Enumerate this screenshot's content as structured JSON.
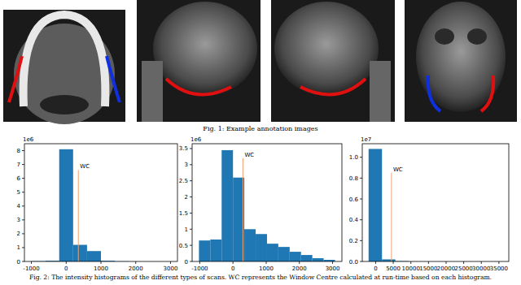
{
  "figure1": {
    "caption": "Fig. 1: Example annotation images"
  },
  "chart_data": [
    {
      "type": "histogram",
      "bins": [
        -1000,
        -600,
        -200,
        200,
        600,
        1000,
        1400,
        1800,
        2200,
        2600,
        3000
      ],
      "values": [
        0.02,
        0.05,
        8.1,
        1.2,
        0.75,
        0.05,
        0.01,
        0,
        0,
        0
      ],
      "color": "#1f77b4",
      "xlim": [
        -1200,
        3200
      ],
      "xticks": [
        -1000,
        0,
        1000,
        2000,
        3000
      ],
      "ylim": [
        0,
        8.5
      ],
      "yticks": [
        0,
        1,
        2,
        3,
        4,
        5,
        6,
        7,
        8
      ],
      "y_offset_label": "1e6",
      "wc": {
        "label": "WC",
        "value": 350,
        "top": 6.6
      }
    },
    {
      "type": "histogram",
      "bins": [
        -1024,
        -683,
        -341,
        0,
        341,
        683,
        1024,
        1365,
        1707,
        2048,
        2389,
        2731,
        3072
      ],
      "values": [
        0.65,
        0.68,
        3.45,
        2.6,
        1.0,
        0.85,
        0.55,
        0.45,
        0.3,
        0.2,
        0.1,
        0.05
      ],
      "color": "#1f77b4",
      "xlim": [
        -1230,
        3280
      ],
      "xticks": [
        -1000,
        0,
        1000,
        2000,
        3000
      ],
      "ylim": [
        0,
        3.65
      ],
      "yticks": [
        0,
        0.5,
        1,
        1.5,
        2,
        2.5,
        3,
        3.5
      ],
      "y_offset_label": "1e6",
      "wc": {
        "label": "WC",
        "value": 300,
        "top": 3.2
      }
    },
    {
      "type": "histogram",
      "bins": [
        -2000,
        1800,
        5600,
        9400,
        13200,
        17000,
        20800,
        24600,
        28400,
        32200,
        36000
      ],
      "values": [
        1.08,
        0.02,
        0.003,
        0,
        0,
        0,
        0,
        0,
        0,
        0
      ],
      "color": "#1f77b4",
      "xlim": [
        -3800,
        37800
      ],
      "xticks": [
        0,
        5000,
        10000,
        15000,
        20000,
        25000,
        30000,
        35000
      ],
      "ylim": [
        0,
        1.13
      ],
      "yticks": [
        {
          "value": 0,
          "label": "0.0"
        },
        {
          "value": 0.2,
          "label": "0.2"
        },
        {
          "value": 0.4,
          "label": "0.4"
        },
        {
          "value": 0.6,
          "label": "0.6"
        },
        {
          "value": 0.8,
          "label": "0.8"
        },
        {
          "value": 1.0,
          "label": "1.0"
        }
      ],
      "y_offset_label": "1e7",
      "wc": {
        "label": "WC",
        "value": 4500,
        "top": 0.85
      }
    }
  ],
  "figure2": {
    "caption": "Fig. 2: The intensity histograms of the different types of scans. WC represents the Window Centre calculated at run-time based on each histogram."
  }
}
